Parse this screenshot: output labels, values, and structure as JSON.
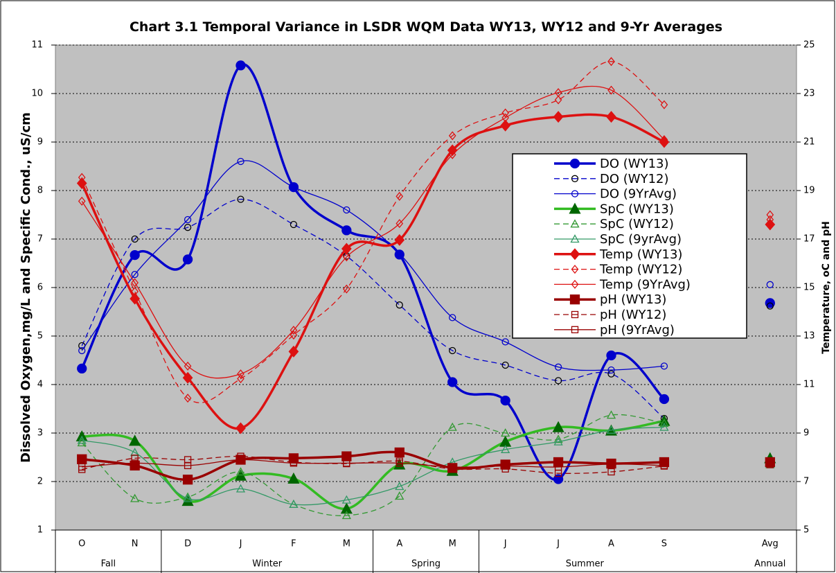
{
  "chart_data": {
    "type": "line",
    "title": "Chart 3.1  Temporal Variance in LSDR WQM Data WY13, WY12 and 9-Yr Averages",
    "y_label": "Dissolved Oxygen,mg/L and Specific Cond., uS/cm",
    "y2_label": "Temperature, oC and pH",
    "categories": [
      "O",
      "N",
      "D",
      "J",
      "F",
      "M",
      "A",
      "M",
      "J",
      "J",
      "A",
      "S",
      null,
      "Avg"
    ],
    "groups": [
      {
        "label": "Fall",
        "span": 2
      },
      {
        "label": "Winter",
        "span": 4
      },
      {
        "label": "Spring",
        "span": 2
      },
      {
        "label": "Summer",
        "span": 4
      },
      {
        "label": null,
        "span": 1
      },
      {
        "label": "Annual",
        "span": 1
      }
    ],
    "ylim": [
      1,
      11
    ],
    "yticks": [
      1,
      2,
      3,
      4,
      5,
      6,
      7,
      8,
      9,
      10,
      11
    ],
    "y2lim": [
      5,
      25
    ],
    "y2ticks": [
      5,
      7,
      9,
      11,
      13,
      15,
      17,
      19,
      21,
      23,
      25
    ],
    "grid": true,
    "legend": "center-right",
    "series": [
      {
        "name": "DO (WY13)",
        "color": "#0000cc",
        "marker": "circle",
        "filled": true,
        "dash": false,
        "bold": true,
        "values": [
          4.33,
          6.67,
          6.58,
          10.58,
          8.07,
          7.18,
          6.68,
          4.05,
          3.67,
          2.05,
          4.6,
          3.7,
          null,
          5.68
        ]
      },
      {
        "name": "DO (WY12)",
        "color": "#0000cc",
        "marker_color": "#000000",
        "marker": "circle",
        "filled": false,
        "dash": true,
        "bold": false,
        "values": [
          4.8,
          7.0,
          7.24,
          7.82,
          7.3,
          6.65,
          5.64,
          4.7,
          4.4,
          4.08,
          4.22,
          3.3,
          null,
          5.62
        ]
      },
      {
        "name": "DO (9YrAvg)",
        "color": "#0000cc",
        "marker": "circle",
        "filled": false,
        "dash": false,
        "bold": false,
        "values": [
          4.7,
          6.27,
          7.4,
          8.6,
          8.07,
          7.6,
          6.7,
          5.38,
          4.88,
          4.36,
          4.3,
          4.38,
          null,
          6.06
        ]
      },
      {
        "name": "SpC (WY13)",
        "color": "#33bb22",
        "marker_color": "#006600",
        "marker": "triangle",
        "filled": true,
        "dash": false,
        "bold": true,
        "values": [
          2.93,
          2.84,
          1.6,
          2.12,
          2.06,
          1.44,
          2.35,
          2.22,
          2.82,
          3.12,
          3.05,
          3.25,
          null,
          2.48
        ]
      },
      {
        "name": "SpC (WY12)",
        "color": "#339933",
        "marker": "triangle",
        "filled": false,
        "dash": true,
        "bold": false,
        "values": [
          2.8,
          1.65,
          1.68,
          2.2,
          1.53,
          1.3,
          1.7,
          3.12,
          3.0,
          2.87,
          3.37,
          3.2,
          null,
          2.35
        ]
      },
      {
        "name": "SpC (9yrAvg)",
        "color": "#339966",
        "marker": "triangle",
        "filled": false,
        "dash": false,
        "bold": false,
        "values": [
          2.85,
          2.6,
          1.65,
          1.85,
          1.53,
          1.62,
          1.9,
          2.4,
          2.66,
          2.82,
          3.06,
          3.12,
          null,
          2.36
        ]
      },
      {
        "name": "Temp (WY13)",
        "color": "#dd1111",
        "marker": "diamond",
        "filled": true,
        "dash": false,
        "bold": true,
        "axis": "y2",
        "values": [
          19.3,
          14.54,
          11.28,
          9.2,
          12.36,
          16.6,
          16.96,
          20.66,
          21.68,
          22.04,
          22.04,
          21.0,
          null,
          17.6
        ]
      },
      {
        "name": "Temp (WY12)",
        "color": "#dd1111",
        "marker": "diamond",
        "filled": false,
        "dash": true,
        "bold": false,
        "axis": "y2",
        "values": [
          19.54,
          14.84,
          10.44,
          11.24,
          13.04,
          14.94,
          18.76,
          21.26,
          22.2,
          22.74,
          24.32,
          22.54,
          null,
          18.0
        ]
      },
      {
        "name": "Temp (9YrAvg)",
        "color": "#dd1111",
        "marker": "diamond",
        "filled": false,
        "dash": false,
        "bold": false,
        "axis": "y2",
        "values": [
          18.56,
          15.2,
          11.76,
          11.44,
          13.24,
          16.26,
          17.64,
          20.48,
          22.0,
          23.04,
          23.14,
          21.1,
          null,
          17.8
        ]
      },
      {
        "name": "pH (WY13)",
        "color": "#990000",
        "marker": "square",
        "filled": true,
        "dash": false,
        "bold": true,
        "axis": "y2",
        "values": [
          7.92,
          7.66,
          7.08,
          7.9,
          7.96,
          8.04,
          8.2,
          7.56,
          7.7,
          7.8,
          7.74,
          7.8,
          null,
          7.8
        ]
      },
      {
        "name": "pH (WY12)",
        "color": "#990000",
        "marker": "square",
        "filled": false,
        "dash": true,
        "bold": false,
        "axis": "y2",
        "values": [
          7.5,
          7.96,
          7.9,
          8.04,
          7.8,
          7.74,
          7.84,
          7.52,
          7.52,
          7.34,
          7.4,
          7.64,
          null,
          7.7
        ]
      },
      {
        "name": "pH (9YrAvg)",
        "color": "#990000",
        "marker": "square",
        "filled": false,
        "dash": false,
        "bold": false,
        "axis": "y2",
        "values": [
          7.6,
          7.76,
          7.66,
          7.9,
          7.76,
          7.76,
          7.76,
          7.6,
          7.64,
          7.6,
          7.72,
          7.66,
          null,
          7.7
        ]
      }
    ]
  }
}
